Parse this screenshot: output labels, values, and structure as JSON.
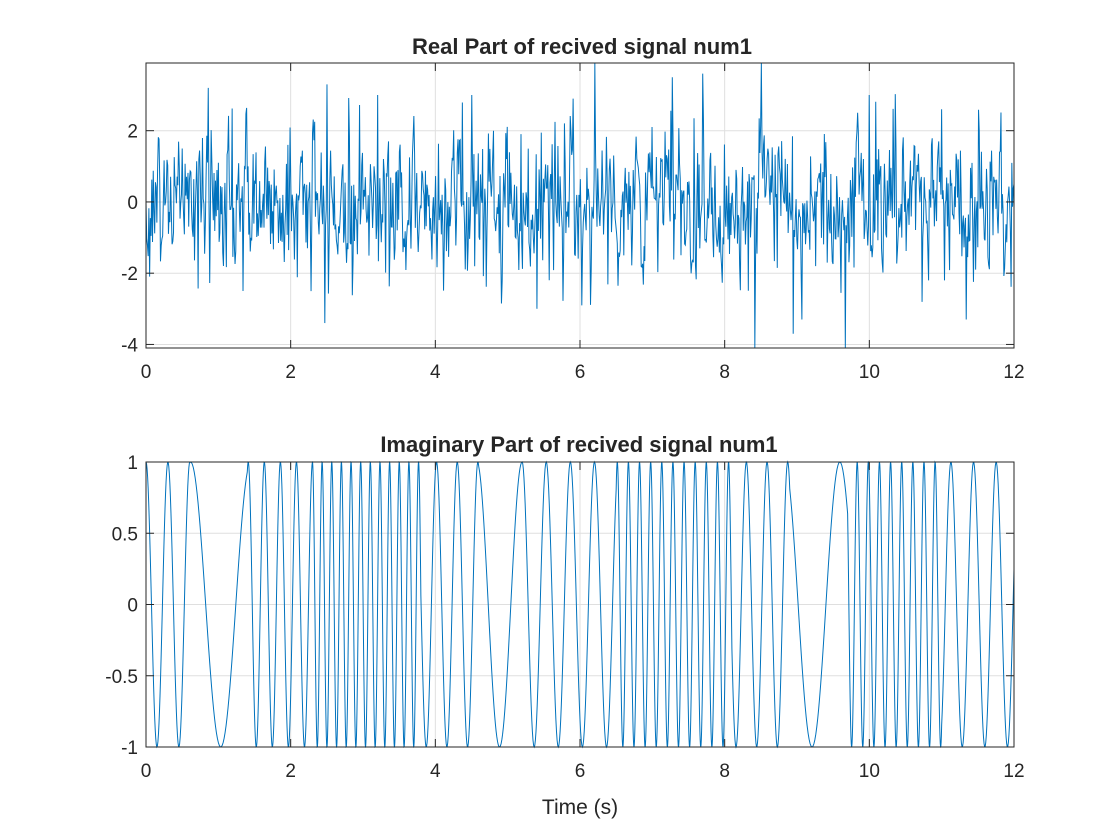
{
  "chart_data": [
    {
      "type": "line",
      "title": "Real Part of recived signal num1",
      "xlabel": "",
      "ylabel": "",
      "xlim": [
        0,
        12
      ],
      "ylim": [
        -4.1,
        3.9
      ],
      "xticks": [
        0,
        2,
        4,
        6,
        8,
        10,
        12
      ],
      "xtick_labels": [
        "0",
        "2",
        "4",
        "6",
        "8",
        "10",
        "12"
      ],
      "yticks": [
        -4,
        -2,
        0,
        2
      ],
      "ytick_labels": [
        "-4",
        "-2",
        "0",
        "2"
      ],
      "grid": true,
      "color": "#0072bd",
      "series": [
        {
          "description": "noisy signal, roughly zero-mean with std about 1.1",
          "x": [
            0,
            0.5,
            0.86,
            1.0,
            1.34,
            2.47,
            2.5,
            3.2,
            4.5,
            5.4,
            5.9,
            6.21,
            7.28,
            7.7,
            8.42,
            8.51,
            8.95,
            9.67,
            10.0,
            11.0,
            12.0
          ],
          "values": [
            0,
            1.5,
            3.2,
            1.1,
            -2.5,
            -3.4,
            3.3,
            3.0,
            3.0,
            -3.0,
            2.9,
            3.9,
            3.5,
            3.6,
            -4.1,
            3.9,
            -3.7,
            -4.1,
            3.0,
            2.6,
            0.5
          ]
        }
      ]
    },
    {
      "type": "line",
      "title": "Imaginary Part of recived signal num1",
      "xlabel": "Time (s)",
      "ylabel": "",
      "xlim": [
        0,
        12
      ],
      "ylim": [
        -1,
        1
      ],
      "xticks": [
        0,
        2,
        4,
        6,
        8,
        10,
        12
      ],
      "xtick_labels": [
        "0",
        "2",
        "4",
        "6",
        "8",
        "10",
        "12"
      ],
      "yticks": [
        -1,
        -0.5,
        0,
        0.5,
        1
      ],
      "ytick_labels": [
        "-1",
        "-0.5",
        "0",
        "0.5",
        "1"
      ],
      "grid": true,
      "color": "#0072bd",
      "series": [
        {
          "description": "unit-amplitude sinusoid whose frequency changes in segments",
          "segments": [
            {
              "t0": 0.0,
              "t1": 0.6,
              "freq_hz": 3.3
            },
            {
              "t0": 0.6,
              "t1": 1.4,
              "freq_hz": 1.2
            },
            {
              "t0": 1.4,
              "t1": 2.3,
              "freq_hz": 4.5
            },
            {
              "t0": 2.3,
              "t1": 3.8,
              "freq_hz": 7.5
            },
            {
              "t0": 3.8,
              "t1": 4.6,
              "freq_hz": 3.5
            },
            {
              "t0": 4.6,
              "t1": 5.2,
              "freq_hz": 1.6
            },
            {
              "t0": 5.2,
              "t1": 6.5,
              "freq_hz": 3.0
            },
            {
              "t0": 6.5,
              "t1": 8.1,
              "freq_hz": 6.5
            },
            {
              "t0": 8.1,
              "t1": 8.9,
              "freq_hz": 3.5
            },
            {
              "t0": 8.9,
              "t1": 9.7,
              "freq_hz": 1.3
            },
            {
              "t0": 9.7,
              "t1": 11.0,
              "freq_hz": 6.5
            },
            {
              "t0": 11.0,
              "t1": 12.0,
              "freq_hz": 3.2
            }
          ]
        }
      ]
    }
  ]
}
